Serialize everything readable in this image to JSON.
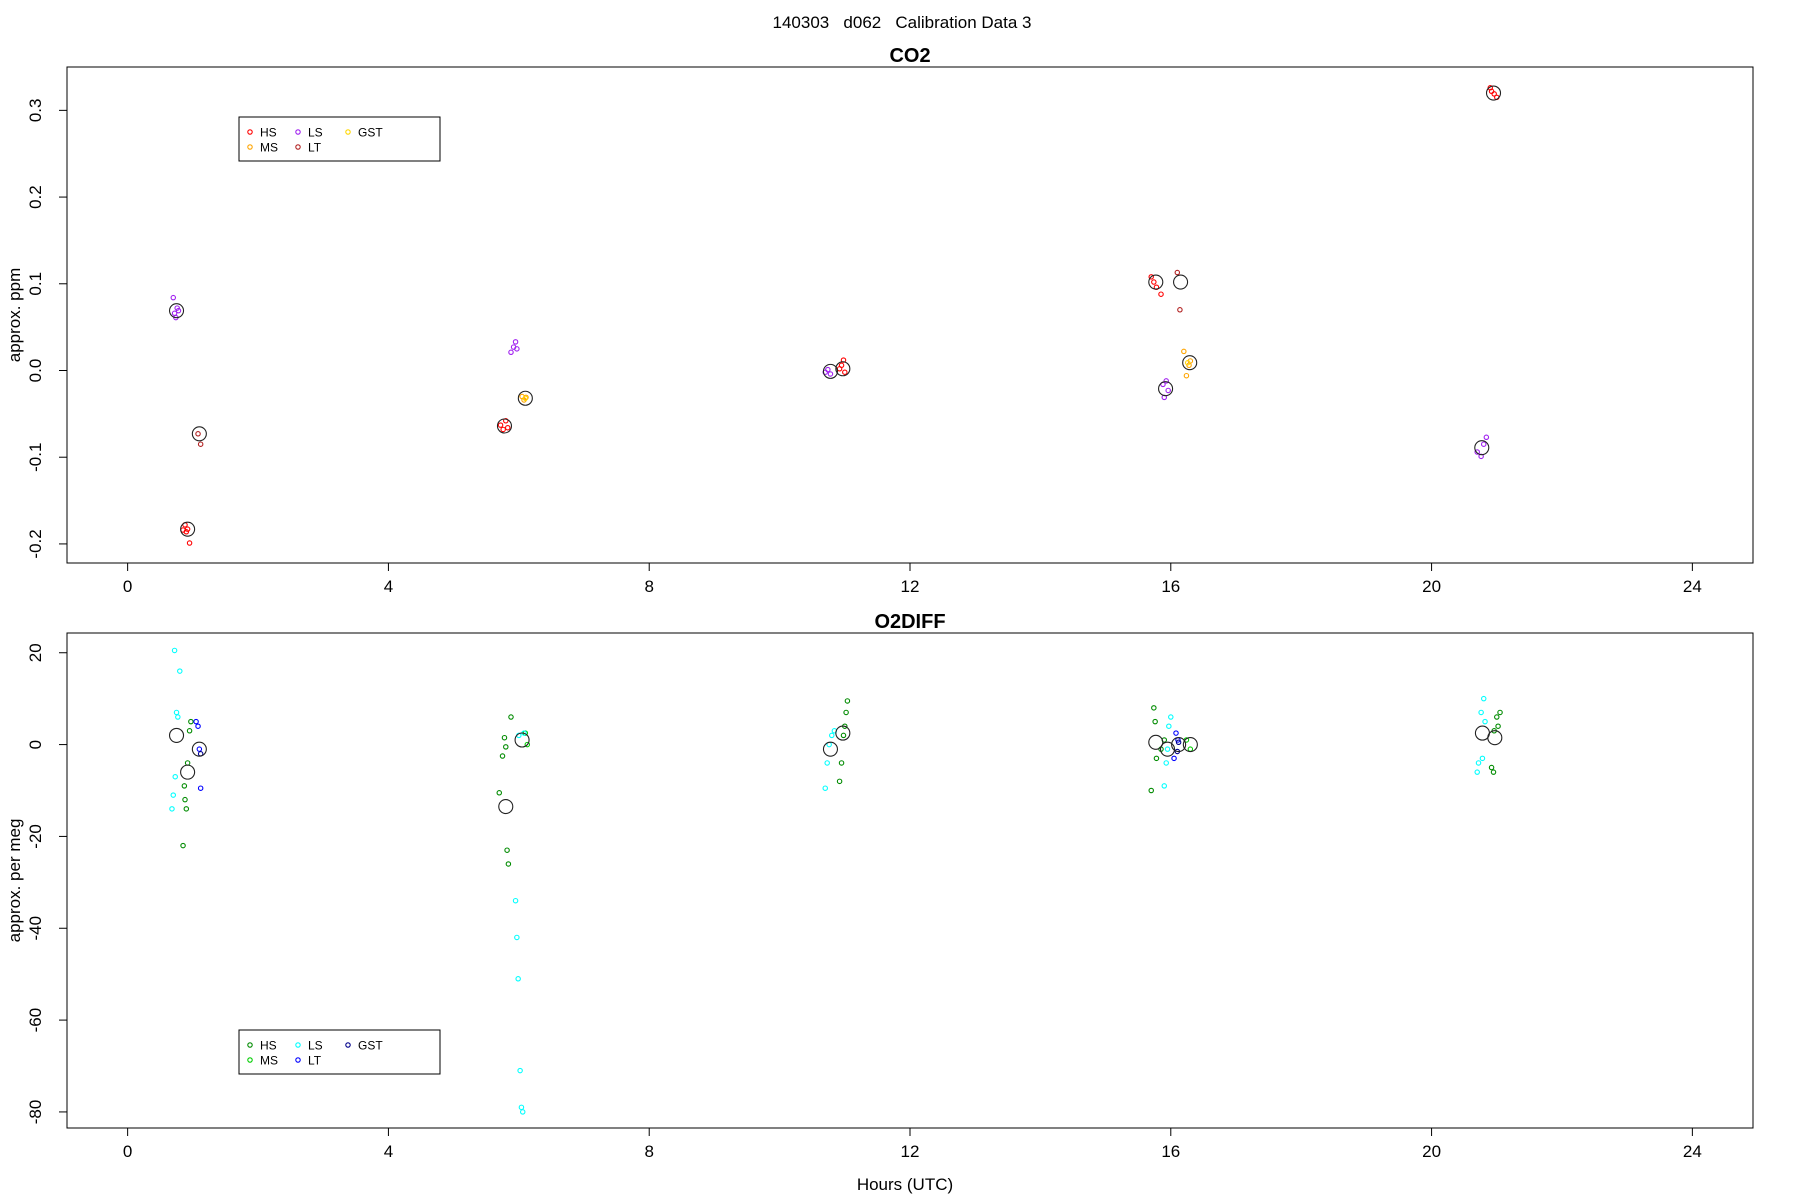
{
  "figure": {
    "title": "140303   d062   Calibration Data 3"
  },
  "chart_data": [
    {
      "type": "scatter",
      "title": "CO2",
      "xlabel": "",
      "ylabel": "approx. ppm",
      "xlim": [
        -0.93,
        24.93
      ],
      "ylim": [
        -0.222,
        0.35
      ],
      "xticks": [
        0,
        4,
        8,
        12,
        16,
        20,
        24
      ],
      "yticks": [
        -0.2,
        -0.1,
        0.0,
        0.1,
        0.2,
        0.3
      ],
      "ytick_labels": [
        "-0.2",
        "-0.1",
        "0.0",
        "0.1",
        "0.2",
        "0.3"
      ],
      "grid": false,
      "legend": {
        "placement": "top-left",
        "entries": [
          {
            "label": "HS",
            "color": "#FF0000"
          },
          {
            "label": "MS",
            "color": "#FFA500"
          },
          {
            "label": "LS",
            "color": "#A020F0"
          },
          {
            "label": "LT",
            "color": "#B22222"
          },
          {
            "label": "GST",
            "color": "#FFD700"
          }
        ]
      },
      "series": [
        {
          "name": "HS",
          "color": "#FF0000",
          "points": [
            [
              0.88,
              -0.178
            ],
            [
              0.9,
              -0.186
            ],
            [
              0.92,
              -0.183
            ],
            [
              0.95,
              -0.199
            ],
            [
              0.85,
              -0.184
            ],
            [
              5.72,
              -0.063
            ],
            [
              5.76,
              -0.068
            ],
            [
              5.8,
              -0.058
            ],
            [
              5.83,
              -0.066
            ],
            [
              10.95,
              0.006
            ],
            [
              10.98,
              0.012
            ],
            [
              11.0,
              -0.002
            ],
            [
              10.92,
              0.002
            ],
            [
              15.7,
              0.108
            ],
            [
              15.74,
              0.102
            ],
            [
              15.78,
              0.096
            ],
            [
              15.85,
              0.088
            ],
            [
              20.92,
              0.322
            ],
            [
              20.96,
              0.319
            ],
            [
              21.0,
              0.315
            ],
            [
              20.9,
              0.326
            ]
          ]
        },
        {
          "name": "MS",
          "color": "#FFA500",
          "points": [
            [
              6.05,
              -0.03
            ],
            [
              6.08,
              -0.034
            ],
            [
              6.11,
              -0.031
            ],
            [
              16.2,
              0.022
            ],
            [
              16.24,
              -0.006
            ],
            [
              16.28,
              0.006
            ],
            [
              16.3,
              0.011
            ]
          ]
        },
        {
          "name": "LS",
          "color": "#A020F0",
          "points": [
            [
              0.7,
              0.084
            ],
            [
              0.72,
              0.066
            ],
            [
              0.74,
              0.061
            ],
            [
              0.76,
              0.072
            ],
            [
              0.78,
              0.069
            ],
            [
              5.88,
              0.021
            ],
            [
              5.92,
              0.027
            ],
            [
              5.95,
              0.033
            ],
            [
              5.97,
              0.025
            ],
            [
              10.7,
              -0.002
            ],
            [
              10.74,
              0.001
            ],
            [
              10.78,
              -0.004
            ],
            [
              15.88,
              -0.016
            ],
            [
              15.9,
              -0.031
            ],
            [
              15.93,
              -0.012
            ],
            [
              15.96,
              -0.023
            ],
            [
              20.7,
              -0.094
            ],
            [
              20.76,
              -0.099
            ],
            [
              20.8,
              -0.085
            ],
            [
              20.84,
              -0.077
            ]
          ]
        },
        {
          "name": "LT",
          "color": "#B22222",
          "points": [
            [
              1.08,
              -0.073
            ],
            [
              1.12,
              -0.085
            ],
            [
              16.1,
              0.113
            ],
            [
              16.14,
              0.07
            ]
          ]
        },
        {
          "name": "GST",
          "color": "#FFD700",
          "points": [
            [
              6.1,
              -0.032
            ],
            [
              16.26,
              0.009
            ]
          ]
        }
      ],
      "means": [
        [
          0.75,
          0.069
        ],
        [
          1.1,
          -0.073
        ],
        [
          0.92,
          -0.183
        ],
        [
          5.78,
          -0.064
        ],
        [
          6.1,
          -0.032
        ],
        [
          10.78,
          -0.001
        ],
        [
          10.97,
          0.002
        ],
        [
          15.77,
          0.102
        ],
        [
          16.15,
          0.102
        ],
        [
          15.92,
          -0.021
        ],
        [
          16.29,
          0.009
        ],
        [
          20.77,
          -0.089
        ],
        [
          20.95,
          0.32
        ]
      ]
    },
    {
      "type": "scatter",
      "title": "O2DIFF",
      "xlabel": "Hours (UTC)",
      "ylabel": "approx. per meg",
      "xlim": [
        -0.93,
        24.93
      ],
      "ylim": [
        -83.5,
        24.3
      ],
      "xticks": [
        0,
        4,
        8,
        12,
        16,
        20,
        24
      ],
      "yticks": [
        -80,
        -60,
        -40,
        -20,
        0,
        20
      ],
      "ytick_labels": [
        "-80",
        "-60",
        "-40",
        "-20",
        "0",
        "20"
      ],
      "grid": false,
      "legend": {
        "placement": "bottom-left",
        "entries": [
          {
            "label": "HS",
            "color": "#008B00"
          },
          {
            "label": "MS",
            "color": "#00CD00"
          },
          {
            "label": "LS",
            "color": "#00FFFF"
          },
          {
            "label": "LT",
            "color": "#0000FF"
          },
          {
            "label": "GST",
            "color": "#00008B"
          }
        ]
      },
      "series": [
        {
          "name": "HS",
          "color": "#008B00",
          "points": [
            [
              0.85,
              -22
            ],
            [
              0.88,
              -12
            ],
            [
              0.9,
              -14
            ],
            [
              0.92,
              -4
            ],
            [
              0.95,
              3
            ],
            [
              0.97,
              5
            ],
            [
              0.87,
              -9
            ],
            [
              5.7,
              -10.5
            ],
            [
              5.75,
              -2.5
            ],
            [
              5.78,
              1.5
            ],
            [
              5.82,
              -23
            ],
            [
              5.84,
              -26
            ],
            [
              5.88,
              6
            ],
            [
              5.8,
              -0.5
            ],
            [
              10.92,
              -8
            ],
            [
              10.95,
              -4
            ],
            [
              11.0,
              4
            ],
            [
              11.02,
              7
            ],
            [
              11.04,
              9.5
            ],
            [
              10.98,
              2
            ],
            [
              15.7,
              -10
            ],
            [
              15.74,
              8
            ],
            [
              15.76,
              5
            ],
            [
              15.78,
              -3
            ],
            [
              15.85,
              -1
            ],
            [
              15.9,
              1
            ],
            [
              20.92,
              -5
            ],
            [
              20.96,
              3
            ],
            [
              21.0,
              6
            ],
            [
              21.02,
              4
            ],
            [
              21.05,
              7
            ],
            [
              20.95,
              -6
            ]
          ]
        },
        {
          "name": "MS",
          "color": "#00CD00",
          "points": [
            [
              6.1,
              2.5
            ],
            [
              6.13,
              0
            ],
            [
              16.24,
              1
            ],
            [
              16.3,
              -1
            ]
          ]
        },
        {
          "name": "LS",
          "color": "#00FFFF",
          "points": [
            [
              0.68,
              -14
            ],
            [
              0.7,
              -11
            ],
            [
              0.73,
              -7
            ],
            [
              0.75,
              7
            ],
            [
              0.77,
              6
            ],
            [
              0.8,
              16
            ],
            [
              0.72,
              20.5
            ],
            [
              5.95,
              -34
            ],
            [
              5.97,
              -42
            ],
            [
              5.99,
              -51
            ],
            [
              6.02,
              -71
            ],
            [
              6.04,
              -79
            ],
            [
              6.06,
              -80
            ],
            [
              6.0,
              2
            ],
            [
              6.08,
              2.5
            ],
            [
              10.7,
              -9.5
            ],
            [
              10.73,
              -4
            ],
            [
              10.76,
              0
            ],
            [
              10.8,
              2
            ],
            [
              10.84,
              3
            ],
            [
              15.9,
              -9
            ],
            [
              15.93,
              -4
            ],
            [
              15.95,
              -1
            ],
            [
              15.97,
              4
            ],
            [
              16.0,
              6
            ],
            [
              20.7,
              -6
            ],
            [
              20.72,
              -4
            ],
            [
              20.76,
              7
            ],
            [
              20.8,
              10
            ],
            [
              20.82,
              5
            ],
            [
              20.78,
              -3
            ]
          ]
        },
        {
          "name": "LT",
          "color": "#0000FF",
          "points": [
            [
              1.05,
              5
            ],
            [
              1.08,
              4
            ],
            [
              1.12,
              -9.5
            ],
            [
              1.1,
              -1
            ],
            [
              16.05,
              -3
            ],
            [
              16.08,
              2.5
            ],
            [
              16.11,
              1
            ]
          ]
        },
        {
          "name": "GST",
          "color": "#00008B",
          "points": [
            [
              1.12,
              -2
            ],
            [
              16.1,
              -1.5
            ],
            [
              16.12,
              0.5
            ]
          ]
        }
      ],
      "means": [
        [
          0.75,
          2
        ],
        [
          0.92,
          -6
        ],
        [
          1.1,
          -1
        ],
        [
          5.8,
          -13.5
        ],
        [
          6.05,
          1
        ],
        [
          10.78,
          -1
        ],
        [
          10.97,
          2.5
        ],
        [
          15.77,
          0.5
        ],
        [
          15.95,
          -1
        ],
        [
          16.12,
          0
        ],
        [
          16.3,
          0
        ],
        [
          20.78,
          2.5
        ],
        [
          20.97,
          1.5
        ]
      ]
    }
  ]
}
